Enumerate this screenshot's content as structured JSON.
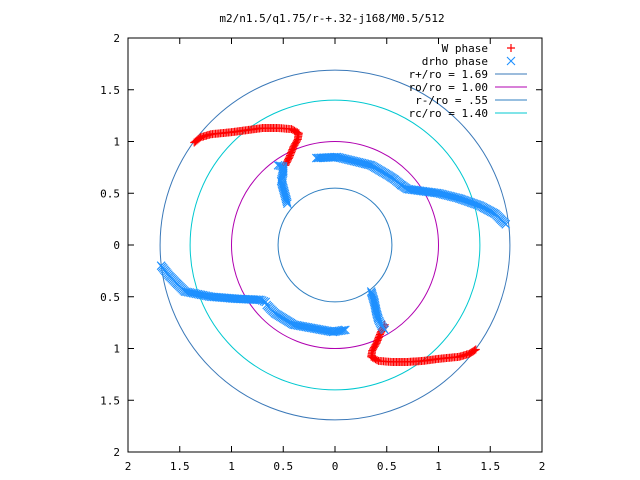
{
  "chart_data": {
    "type": "scatter",
    "title": "m2/n1.5/q1.75/r-+.32-j168/M0.5/512",
    "xlim": [
      -2,
      2
    ],
    "ylim": [
      -2,
      2
    ],
    "x_ticks": [
      -2,
      -1.5,
      -1,
      -0.5,
      0,
      0.5,
      1,
      1.5,
      2
    ],
    "y_ticks": [
      -2,
      -1.5,
      -1,
      -0.5,
      0,
      0.5,
      1,
      1.5,
      2
    ],
    "x_tick_labels": [
      "2",
      "1.5",
      "1",
      "0.5",
      "0",
      "0.5",
      "1",
      "1.5",
      "2"
    ],
    "y_tick_labels": [
      "2",
      "1.5",
      "1",
      "0.5",
      "0",
      "0.5",
      "1",
      "1.5",
      "2"
    ],
    "grid": false,
    "legend_position": "top-right",
    "series": [
      {
        "name": "W phase",
        "marker": "plus",
        "color": "#ff0000",
        "arms": [
          [
            [
              -1.36,
              0.99
            ],
            [
              -1.3,
              1.04
            ],
            [
              -1.2,
              1.07
            ],
            [
              -1.0,
              1.09
            ],
            [
              -0.85,
              1.11
            ],
            [
              -0.7,
              1.13
            ],
            [
              -0.55,
              1.13
            ],
            [
              -0.42,
              1.12
            ],
            [
              -0.35,
              1.08
            ],
            [
              -0.36,
              1.02
            ],
            [
              -0.4,
              0.95
            ],
            [
              -0.44,
              0.85
            ],
            [
              -0.48,
              0.77
            ]
          ],
          [
            [
              1.36,
              -1.01
            ],
            [
              1.3,
              -1.05
            ],
            [
              1.2,
              -1.08
            ],
            [
              1.0,
              -1.1
            ],
            [
              0.85,
              -1.12
            ],
            [
              0.7,
              -1.13
            ],
            [
              0.55,
              -1.13
            ],
            [
              0.42,
              -1.12
            ],
            [
              0.35,
              -1.08
            ],
            [
              0.36,
              -1.02
            ],
            [
              0.4,
              -0.95
            ],
            [
              0.44,
              -0.85
            ],
            [
              0.48,
              -0.77
            ]
          ]
        ]
      },
      {
        "name": "drho phase",
        "marker": "cross",
        "color": "#1e90ff",
        "arms": [
          [
            [
              -0.55,
              0.77
            ],
            [
              -0.5,
              0.76
            ],
            [
              -0.5,
              0.7
            ],
            [
              -0.52,
              0.62
            ],
            [
              -0.5,
              0.55
            ],
            [
              -0.46,
              0.4
            ]
          ],
          [
            [
              -0.18,
              0.84
            ],
            [
              0.02,
              0.85
            ],
            [
              0.35,
              0.77
            ],
            [
              0.52,
              0.67
            ],
            [
              0.58,
              0.63
            ],
            [
              0.64,
              0.58
            ]
          ],
          [
            [
              0.64,
              0.58
            ],
            [
              0.7,
              0.54
            ],
            [
              0.85,
              0.52
            ],
            [
              1.0,
              0.5
            ],
            [
              1.2,
              0.45
            ],
            [
              1.4,
              0.38
            ],
            [
              1.55,
              0.3
            ],
            [
              1.65,
              0.2
            ]
          ],
          [
            [
              -1.68,
              -0.2
            ],
            [
              -1.6,
              -0.3
            ],
            [
              -1.45,
              -0.45
            ],
            [
              -1.2,
              -0.5
            ],
            [
              -0.95,
              -0.52
            ],
            [
              -0.72,
              -0.53
            ],
            [
              -0.67,
              -0.55
            ]
          ],
          [
            [
              -0.66,
              -0.58
            ],
            [
              -0.58,
              -0.66
            ],
            [
              -0.4,
              -0.77
            ],
            [
              -0.02,
              -0.84
            ],
            [
              0.1,
              -0.82
            ]
          ],
          [
            [
              0.35,
              -0.45
            ],
            [
              0.38,
              -0.55
            ],
            [
              0.4,
              -0.65
            ],
            [
              0.42,
              -0.72
            ],
            [
              0.45,
              -0.78
            ],
            [
              0.48,
              -0.82
            ]
          ]
        ]
      }
    ],
    "circles": [
      {
        "name": "r+/ro = 1.69",
        "r": 1.69,
        "color": "#3a78b8"
      },
      {
        "name": "ro/ro = 1.00",
        "r": 1.0,
        "color": "#b000b0"
      },
      {
        "name": "r-/ro = .55",
        "r": 0.55,
        "color": "#2f7fc1"
      },
      {
        "name": "rc/ro = 1.40",
        "r": 1.4,
        "color": "#00c8d0"
      }
    ]
  }
}
